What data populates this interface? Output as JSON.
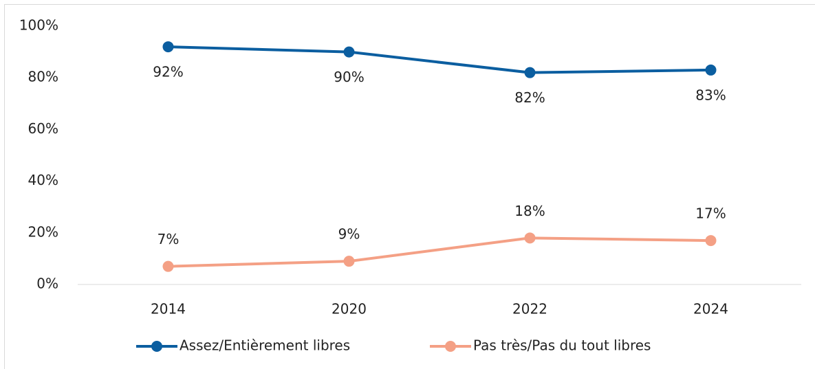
{
  "chart_data": {
    "type": "line",
    "categories": [
      "2014",
      "2020",
      "2022",
      "2024"
    ],
    "series": [
      {
        "name": "Assez/Entièrement libres",
        "color": "#0b5ea0",
        "values": [
          92,
          90,
          82,
          83
        ],
        "value_labels": [
          "92%",
          "90%",
          "82%",
          "83%"
        ]
      },
      {
        "name": "Pas très/Pas du tout libres",
        "color": "#f4a085",
        "values": [
          7,
          9,
          18,
          17
        ],
        "value_labels": [
          "7%",
          "9%",
          "18%",
          "17%"
        ]
      }
    ],
    "ylim": [
      0,
      100
    ],
    "yticks": [
      {
        "value": 0,
        "label": "0%"
      },
      {
        "value": 20,
        "label": "20%"
      },
      {
        "value": 40,
        "label": "40%"
      },
      {
        "value": 60,
        "label": "60%"
      },
      {
        "value": 80,
        "label": "80%"
      },
      {
        "value": 100,
        "label": "100%"
      }
    ],
    "grid": false,
    "legend": "bottom"
  }
}
